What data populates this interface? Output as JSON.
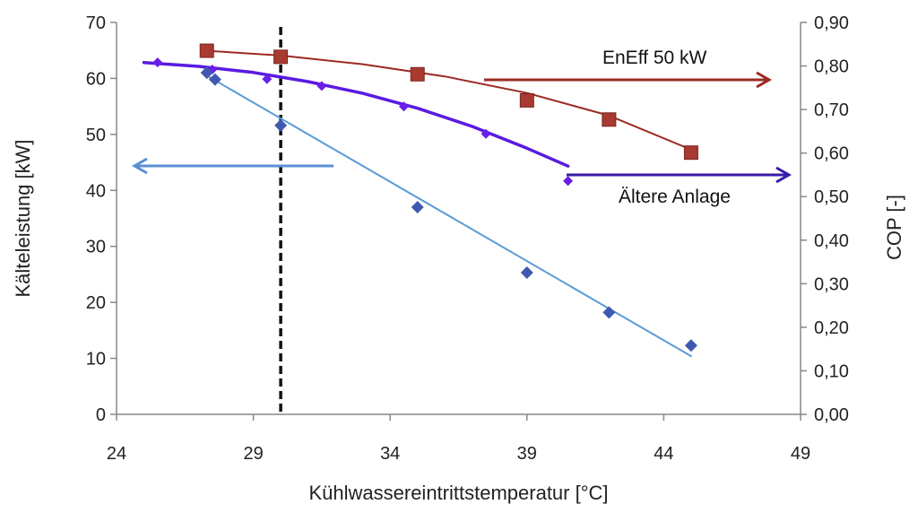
{
  "chart_data": {
    "type": "scatter",
    "xlabel": "Kühlwassereintrittstemperatur [°C]",
    "ylabel_left": "Kälteleistung [kW]",
    "ylabel_right": "COP [-]",
    "x_range": [
      24,
      49
    ],
    "y_left_range": [
      0,
      70
    ],
    "y_right_range": [
      0,
      0.9
    ],
    "x_ticks": [
      24,
      29,
      34,
      39,
      44,
      49
    ],
    "x_tick_labels": [
      "24",
      "29",
      "34",
      "39",
      "44",
      "49"
    ],
    "y_left_ticks": [
      0,
      10,
      20,
      30,
      40,
      50,
      60,
      70
    ],
    "y_left_tick_labels": [
      "0",
      "10",
      "20",
      "30",
      "40",
      "50",
      "60",
      "70"
    ],
    "y_right_ticks": [
      0,
      0.1,
      0.2,
      0.3,
      0.4,
      0.5,
      0.6,
      0.7,
      0.8,
      0.9
    ],
    "y_right_tick_labels": [
      "0,00",
      "0,10",
      "0,20",
      "0,30",
      "0,40",
      "0,50",
      "0,60",
      "0,70",
      "0,80",
      "0,90"
    ],
    "vertical_reference_line_x": 30.0,
    "series": [
      {
        "name": "EnEff 50 kW (COP)",
        "axis": "right",
        "marker": "square",
        "color": "#a83a32",
        "line_color": "#9b2a22",
        "x": [
          27.3,
          30.0,
          35.0,
          39.0,
          42.0,
          45.0
        ],
        "y": [
          0.835,
          0.821,
          0.781,
          0.721,
          0.677,
          0.601
        ],
        "trend": [
          [
            27.3,
            0.835
          ],
          [
            30,
            0.824
          ],
          [
            33,
            0.804
          ],
          [
            36,
            0.776
          ],
          [
            39,
            0.738
          ],
          [
            42,
            0.686
          ],
          [
            45,
            0.608
          ]
        ]
      },
      {
        "name": "Ältere Anlage (COP)",
        "axis": "right",
        "marker": "diamond",
        "color": "#6a1ee8",
        "line_color": "#5a1ae0",
        "x": [
          25.5,
          27.5,
          29.5,
          31.5,
          34.5,
          37.5,
          40.5
        ],
        "y": [
          0.808,
          0.792,
          0.77,
          0.754,
          0.707,
          0.644,
          0.536
        ],
        "trend": [
          [
            25,
            0.808
          ],
          [
            27,
            0.799
          ],
          [
            29,
            0.785
          ],
          [
            31,
            0.764
          ],
          [
            33,
            0.737
          ],
          [
            35,
            0.703
          ],
          [
            37,
            0.661
          ],
          [
            39,
            0.611
          ],
          [
            40.5,
            0.57
          ]
        ]
      },
      {
        "name": "Ältere Anlage (Kälteleistung)",
        "axis": "left",
        "marker": "diamond",
        "color": "#3f59b0",
        "line_color": "#5b9bd5",
        "x": [
          27.3,
          27.6,
          30.0,
          35.0,
          39.0,
          42.0,
          45.0
        ],
        "y": [
          61.0,
          59.8,
          51.6,
          37.0,
          25.3,
          18.2,
          12.3
        ],
        "trend": [
          [
            27.3,
            60.5
          ],
          [
            45.0,
            10.4
          ]
        ]
      }
    ],
    "annotations": [
      {
        "text": "EnEff 50 kW",
        "arrow": "right",
        "axis": "right"
      },
      {
        "text": "Ältere Anlage",
        "arrow": "right",
        "axis": "right"
      },
      {
        "text": "",
        "arrow": "left",
        "axis": "left"
      }
    ]
  }
}
